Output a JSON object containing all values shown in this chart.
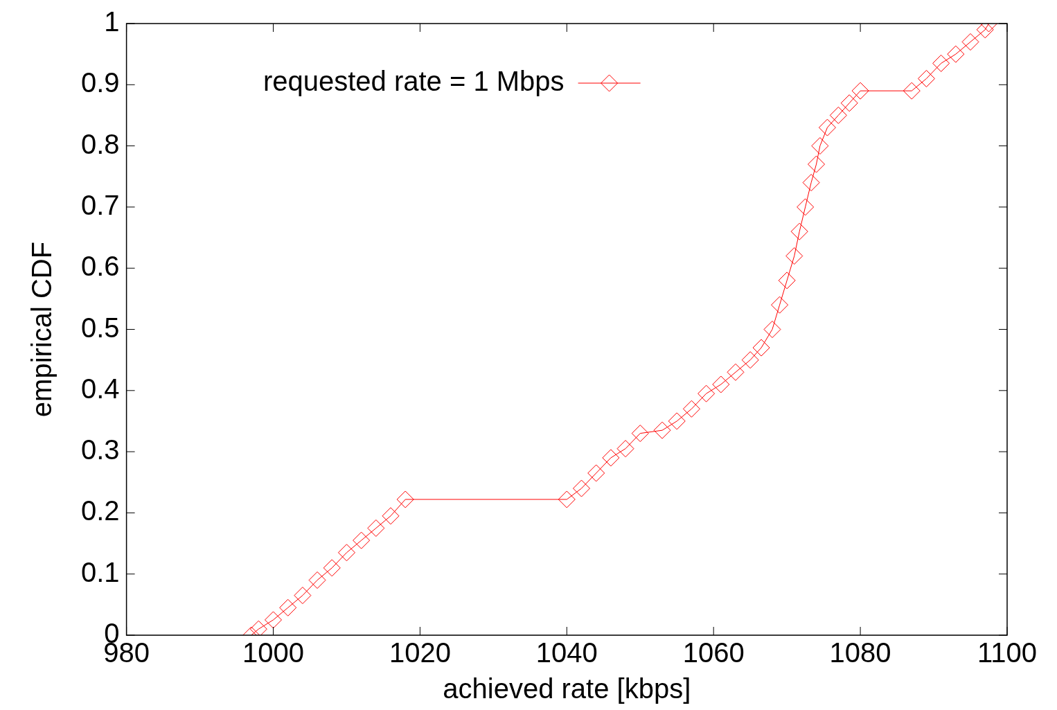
{
  "chart_data": {
    "type": "line",
    "xlabel": "achieved rate [kbps]",
    "ylabel": "empirical CDF",
    "xlim": [
      980,
      1100
    ],
    "xticks": [
      980,
      1000,
      1020,
      1040,
      1060,
      1080,
      1100
    ],
    "ylim": [
      0,
      1
    ],
    "yticks": [
      0,
      0.1,
      0.2,
      0.3,
      0.4,
      0.5,
      0.6,
      0.7,
      0.8,
      0.9,
      1
    ],
    "grid": false,
    "legend": "top left",
    "marker": "diamond",
    "line_style": "solid",
    "series": [
      {
        "name": "requested rate = 1 Mbps",
        "color": "#ff0000",
        "x": [
          997,
          998,
          1000,
          1002,
          1004,
          1006,
          1008,
          1010,
          1012,
          1014,
          1016,
          1018,
          1040,
          1042,
          1044,
          1046,
          1048,
          1050,
          1053,
          1055,
          1057,
          1059,
          1061,
          1063,
          1065,
          1066.5,
          1068,
          1069,
          1070,
          1071,
          1071.7,
          1072.5,
          1073.3,
          1074,
          1074.5,
          1075.5,
          1077,
          1078.5,
          1080,
          1087,
          1089,
          1091,
          1093,
          1095,
          1097,
          1097.5
        ],
        "values": [
          0,
          0.01,
          0.025,
          0.045,
          0.065,
          0.09,
          0.11,
          0.135,
          0.155,
          0.175,
          0.195,
          0.222,
          0.222,
          0.24,
          0.265,
          0.29,
          0.305,
          0.33,
          0.335,
          0.35,
          0.37,
          0.395,
          0.41,
          0.43,
          0.45,
          0.47,
          0.5,
          0.54,
          0.58,
          0.62,
          0.66,
          0.7,
          0.74,
          0.77,
          0.8,
          0.83,
          0.85,
          0.87,
          0.89,
          0.89,
          0.91,
          0.935,
          0.95,
          0.97,
          0.99,
          1
        ]
      }
    ]
  }
}
